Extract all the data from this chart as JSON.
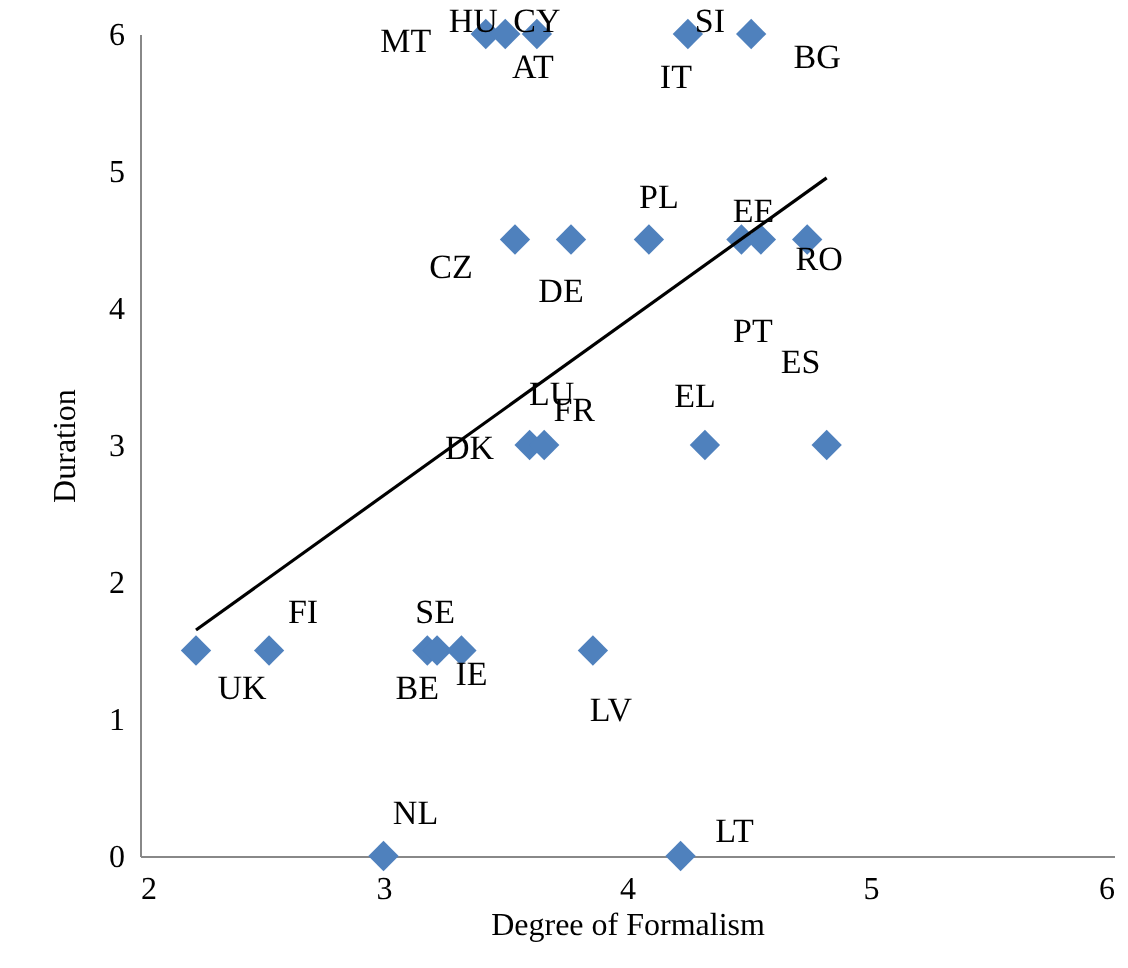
{
  "chart_data": {
    "type": "scatter",
    "xlabel": "Degree of Formalism",
    "ylabel": "Duration",
    "xlim": [
      2,
      6
    ],
    "ylim": [
      0,
      6
    ],
    "xticks": [
      2,
      3,
      4,
      5,
      6
    ],
    "yticks": [
      0,
      1,
      2,
      3,
      4,
      5,
      6
    ],
    "grid": false,
    "marker": "diamond",
    "series": [
      {
        "color": "#4f81bd",
        "x": [
          3.42,
          3.5,
          3.63,
          4.25,
          4.51,
          3.54,
          3.77,
          4.09,
          4.47,
          4.55,
          4.74,
          3.6,
          3.66,
          4.32,
          4.82,
          2.23,
          2.53,
          3.18,
          3.22,
          3.32,
          3.86,
          3.0,
          4.22
        ],
        "values": [
          6,
          6,
          6,
          6,
          6,
          4.5,
          4.5,
          4.5,
          4.5,
          4.5,
          4.5,
          3,
          3,
          3,
          3,
          1.5,
          1.5,
          1.5,
          1.5,
          1.5,
          1.5,
          0,
          0
        ]
      },
      {
        "type": "line",
        "marker": "none",
        "color": "#000000",
        "x": [
          2.23,
          4.82
        ],
        "values": [
          1.65,
          4.95
        ]
      }
    ],
    "annotations": [
      {
        "text": "MT",
        "x": 3.42,
        "y": 6
      },
      {
        "text": "HU",
        "x": 3.5,
        "y": 6
      },
      {
        "text": "CY",
        "x": 3.63,
        "y": 6
      },
      {
        "text": "AT",
        "x": 3.63,
        "y": 6
      },
      {
        "text": "SI",
        "x": 4.25,
        "y": 6
      },
      {
        "text": "IT",
        "x": 4.25,
        "y": 6
      },
      {
        "text": "BG",
        "x": 4.51,
        "y": 6
      },
      {
        "text": "CZ",
        "x": 3.54,
        "y": 4.5
      },
      {
        "text": "DE",
        "x": 3.77,
        "y": 4.5
      },
      {
        "text": "PL",
        "x": 4.09,
        "y": 4.5
      },
      {
        "text": "EE",
        "x": 4.47,
        "y": 4.5
      },
      {
        "text": "RO",
        "x": 4.74,
        "y": 4.5
      },
      {
        "text": "PT",
        "x": 4.55,
        "y": 4.5
      },
      {
        "text": "ES",
        "x": 4.82,
        "y": 3
      },
      {
        "text": "LU",
        "x": 3.6,
        "y": 3
      },
      {
        "text": "FR",
        "x": 3.66,
        "y": 3
      },
      {
        "text": "DK",
        "x": 3.6,
        "y": 3
      },
      {
        "text": "EL",
        "x": 4.32,
        "y": 3
      },
      {
        "text": "FI",
        "x": 2.53,
        "y": 1.5
      },
      {
        "text": "UK",
        "x": 2.23,
        "y": 1.5
      },
      {
        "text": "SE",
        "x": 3.22,
        "y": 1.5
      },
      {
        "text": "BE",
        "x": 3.18,
        "y": 1.5
      },
      {
        "text": "IE",
        "x": 3.32,
        "y": 1.5
      },
      {
        "text": "LV",
        "x": 3.86,
        "y": 1.5
      },
      {
        "text": "NL",
        "x": 3.0,
        "y": 0
      },
      {
        "text": "LT",
        "x": 4.22,
        "y": 0
      }
    ]
  }
}
